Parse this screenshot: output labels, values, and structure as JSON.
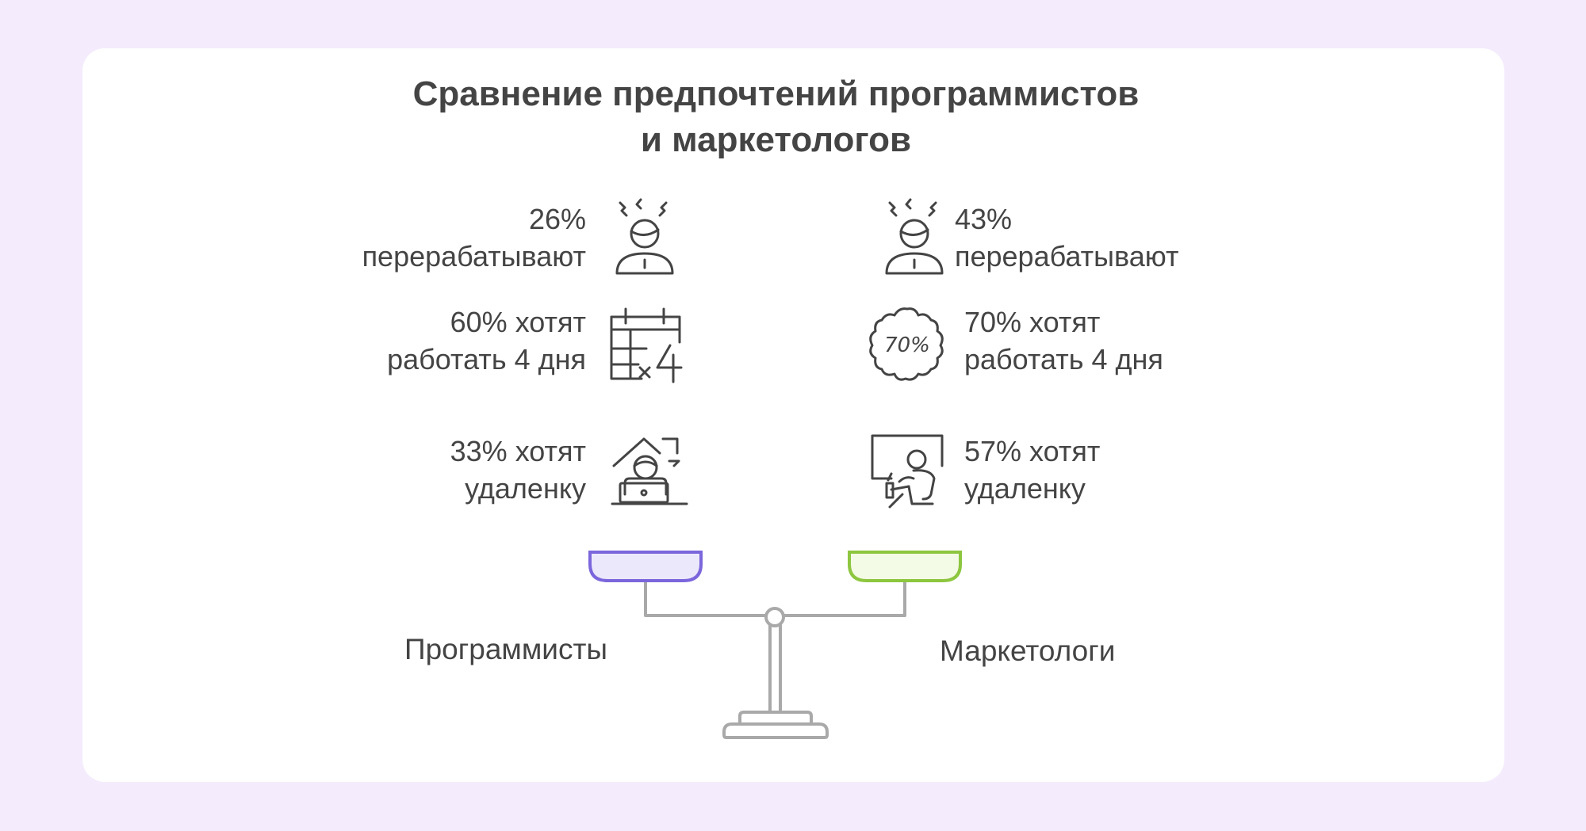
{
  "title": {
    "line1": "Сравнение предпочтений программистов",
    "line2": "и маркетологов"
  },
  "left": {
    "label": "Программисты",
    "pan_color": "#7c66dc",
    "pan_fill": "#ece8fb",
    "items": [
      {
        "line1": "26%",
        "line2": "перерабатывают",
        "icon": "stressed-person-icon"
      },
      {
        "line1": "60% хотят",
        "line2": "работать 4 дня",
        "icon": "calendar-x4-icon"
      },
      {
        "line1": "33% хотят",
        "line2": "удаленку",
        "icon": "home-laptop-icon"
      }
    ]
  },
  "right": {
    "label": "Маркетологи",
    "pan_color": "#8dc63f",
    "pan_fill": "#f3fae5",
    "badge_text": "70%",
    "items": [
      {
        "line1": "43%",
        "line2": "перерабатывают",
        "icon": "stressed-person-icon"
      },
      {
        "line1": "70% хотят",
        "line2": "работать 4 дня",
        "icon": "badge-70-percent-icon"
      },
      {
        "line1": "57% хотят",
        "line2": "удаленку",
        "icon": "remote-worker-icon"
      }
    ]
  },
  "colors": {
    "background": "#f4ebfd",
    "card": "#ffffff",
    "text": "#444444",
    "scale": "#a9a9a9"
  }
}
